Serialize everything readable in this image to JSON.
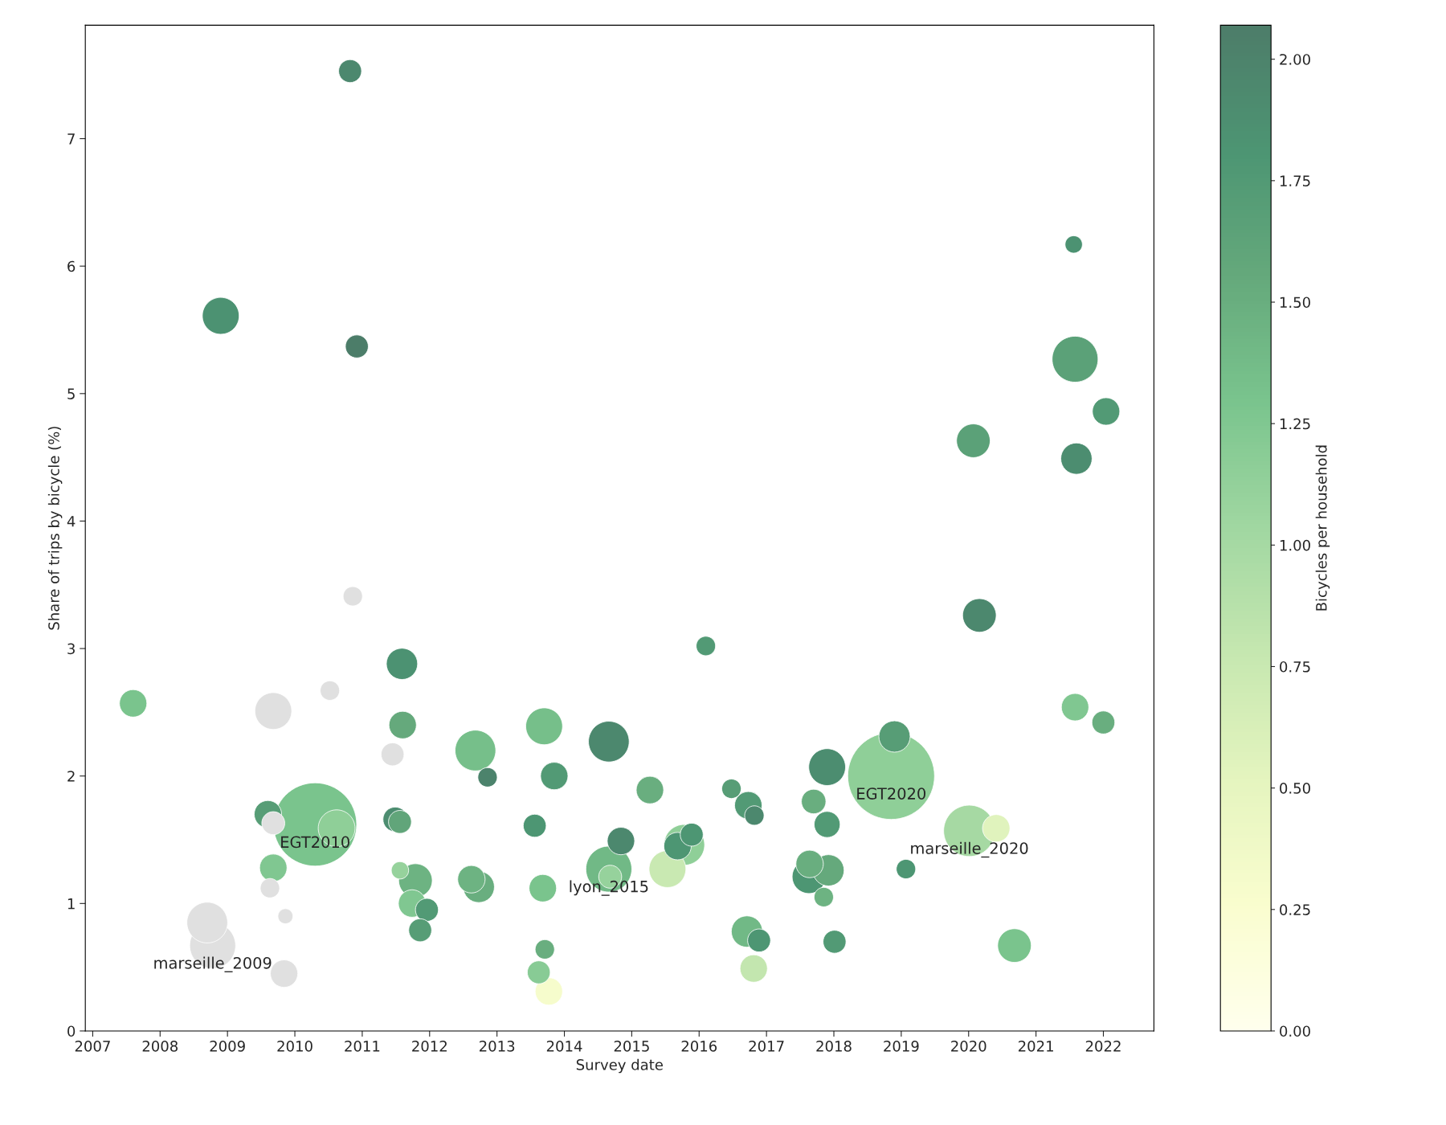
{
  "chart_data": {
    "type": "bubble",
    "xlabel": "Survey date",
    "ylabel": "Share of trips by bicycle (%)",
    "clabel": "Bicycles per household",
    "x": [
      2007.6,
      2008.9,
      2010.82,
      2010.92,
      2010.86,
      2009.68,
      2010.52,
      2011.45,
      2011.59,
      2011.6,
      2009.6,
      2009.68,
      2010.3,
      2010.62,
      2011.49,
      2011.56,
      2009.68,
      2009.63,
      2009.86,
      2008.7,
      2008.78,
      2009.84,
      2011.56,
      2011.79,
      2011.74,
      2011.96,
      2011.86,
      2012.68,
      2012.86,
      2012.62,
      2012.73,
      2013.56,
      2013.7,
      2013.85,
      2013.68,
      2013.71,
      2013.62,
      2013.77,
      2014.66,
      2014.84,
      2014.66,
      2014.68,
      2015.27,
      2015.89,
      2015.68,
      2015.78,
      2015.53,
      2016.1,
      2016.48,
      2016.73,
      2016.82,
      2016.71,
      2016.89,
      2016.81,
      2017.7,
      2017.9,
      2017.9,
      2017.64,
      2017.63,
      2017.92,
      2017.85,
      2018.01,
      2018.9,
      2018.85,
      2019.07,
      2020.01,
      2020.41,
      2020.07,
      2020.16,
      2020.68,
      2021.56,
      2021.58,
      2022.04,
      2021.6,
      2021.58,
      2022.0
    ],
    "values": [
      2.57,
      5.61,
      7.53,
      5.37,
      3.41,
      2.51,
      2.67,
      2.17,
      2.88,
      2.4,
      1.7,
      1.63,
      1.62,
      1.59,
      1.66,
      1.64,
      1.28,
      1.12,
      0.9,
      0.85,
      0.67,
      0.45,
      1.26,
      1.18,
      1.0,
      0.95,
      0.79,
      2.2,
      1.99,
      1.19,
      1.13,
      1.61,
      2.39,
      2.0,
      1.12,
      0.64,
      0.46,
      0.31,
      2.27,
      1.49,
      1.27,
      1.21,
      1.89,
      1.54,
      1.45,
      1.46,
      1.27,
      3.02,
      1.9,
      1.77,
      1.69,
      0.78,
      0.71,
      0.49,
      1.8,
      2.07,
      1.62,
      1.31,
      1.21,
      1.26,
      1.05,
      0.7,
      2.31,
      2.0,
      1.27,
      1.57,
      1.59,
      4.63,
      3.26,
      0.67,
      6.17,
      5.27,
      4.86,
      4.49,
      2.54,
      2.42
    ],
    "sizes": [
      0.1,
      0.18,
      0.07,
      0.07,
      0.05,
      0.18,
      0.05,
      0.07,
      0.13,
      0.1,
      0.1,
      0.07,
      0.92,
      0.18,
      0.08,
      0.07,
      0.1,
      0.05,
      0.03,
      0.22,
      0.28,
      0.1,
      0.04,
      0.15,
      0.1,
      0.07,
      0.07,
      0.22,
      0.05,
      0.1,
      0.13,
      0.07,
      0.18,
      0.1,
      0.1,
      0.05,
      0.07,
      0.1,
      0.22,
      0.1,
      0.28,
      0.07,
      0.1,
      0.07,
      0.1,
      0.22,
      0.18,
      0.05,
      0.05,
      0.1,
      0.05,
      0.13,
      0.07,
      0.1,
      0.08,
      0.18,
      0.09,
      0.1,
      0.15,
      0.13,
      0.05,
      0.07,
      0.13,
      1.0,
      0.05,
      0.35,
      0.1,
      0.15,
      0.15,
      0.15,
      0.04,
      0.28,
      0.1,
      0.13,
      0.1,
      0.07
    ],
    "cvalues": [
      1.3,
      1.85,
      1.95,
      2.07,
      null,
      null,
      null,
      null,
      1.85,
      1.55,
      1.7,
      null,
      1.3,
      1.15,
      1.9,
      1.6,
      1.25,
      null,
      null,
      null,
      null,
      null,
      1.1,
      1.45,
      1.25,
      1.75,
      1.7,
      1.35,
      2.0,
      1.45,
      1.5,
      1.8,
      1.35,
      1.75,
      1.3,
      1.5,
      1.2,
      0.3,
      1.95,
      1.95,
      1.4,
      1.1,
      1.5,
      1.8,
      1.8,
      1.15,
      0.75,
      1.75,
      1.7,
      1.75,
      1.95,
      1.4,
      1.8,
      0.8,
      1.5,
      1.9,
      1.75,
      1.5,
      1.8,
      1.55,
      1.45,
      1.75,
      1.7,
      1.15,
      1.8,
      1.0,
      0.55,
      1.65,
      1.95,
      1.3,
      1.85,
      1.65,
      1.75,
      1.9,
      1.25,
      1.5
    ],
    "clim": [
      0,
      2.07
    ],
    "cticks": [
      {
        "value": 0,
        "label": "0.00"
      },
      {
        "value": 0.25,
        "label": "0.25"
      },
      {
        "value": 0.5,
        "label": "0.50"
      },
      {
        "value": 0.75,
        "label": "0.75"
      },
      {
        "value": 1,
        "label": "1.00"
      },
      {
        "value": 1.25,
        "label": "1.25"
      },
      {
        "value": 1.5,
        "label": "1.50"
      },
      {
        "value": 1.75,
        "label": "1.75"
      },
      {
        "value": 2,
        "label": "2.00"
      }
    ],
    "xlim": [
      2006.89,
      2022.75
    ],
    "xticks": [
      2007,
      2008,
      2009,
      2010,
      2011,
      2012,
      2013,
      2014,
      2015,
      2016,
      2017,
      2018,
      2019,
      2020,
      2021,
      2022
    ],
    "ylim": [
      0,
      7.89
    ],
    "yticks": [
      0,
      1,
      2,
      3,
      4,
      5,
      6,
      7
    ],
    "annotations": [
      {
        "text": "marseille_2009",
        "x": 2008.78,
        "y": 0.67
      },
      {
        "text": "EGT2010",
        "x": 2010.3,
        "y": 1.62
      },
      {
        "text": "lyon_2015",
        "x": 2014.66,
        "y": 1.27
      },
      {
        "text": "EGT2020",
        "x": 2018.85,
        "y": 2.0
      },
      {
        "text": "marseille_2020",
        "x": 2020.01,
        "y": 1.57
      }
    ],
    "grid": false,
    "legend": false
  }
}
